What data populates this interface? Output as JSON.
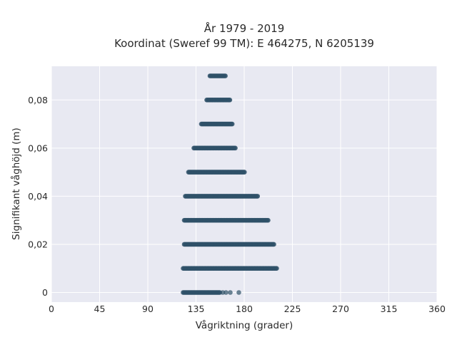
{
  "chart_data": {
    "type": "scatter",
    "title_line1": "År 1979 - 2019",
    "title_line2": "Koordinat (Sweref 99 TM): E 464275, N 6205139",
    "xlabel": "Vågriktning (grader)",
    "ylabel": "Signifikant våghöjd (m)",
    "xlim": [
      0,
      360
    ],
    "ylim": [
      -0.004,
      0.094
    ],
    "xticks": [
      0,
      45,
      90,
      135,
      180,
      225,
      270,
      315,
      360
    ],
    "xtick_labels": [
      "0",
      "45",
      "90",
      "135",
      "180",
      "225",
      "270",
      "315",
      "360"
    ],
    "yticks": [
      0,
      0.02,
      0.04,
      0.06,
      0.08
    ],
    "ytick_labels": [
      "0",
      "0,02",
      "0,04",
      "0,06",
      "0,08"
    ],
    "grid": true,
    "background": "#e8e9f2",
    "marker_color": "#2f5168",
    "bands": [
      {
        "y": 0.0,
        "x_min": 123,
        "x_max": 158,
        "outliers": [
          160,
          163,
          167,
          175
        ]
      },
      {
        "y": 0.01,
        "x_min": 123,
        "x_max": 211,
        "outliers": []
      },
      {
        "y": 0.02,
        "x_min": 124,
        "x_max": 208,
        "outliers": []
      },
      {
        "y": 0.03,
        "x_min": 124,
        "x_max": 203,
        "outliers": []
      },
      {
        "y": 0.04,
        "x_min": 125,
        "x_max": 193,
        "outliers": []
      },
      {
        "y": 0.05,
        "x_min": 128,
        "x_max": 181,
        "outliers": []
      },
      {
        "y": 0.06,
        "x_min": 133,
        "x_max": 172,
        "outliers": []
      },
      {
        "y": 0.07,
        "x_min": 140,
        "x_max": 169,
        "outliers": []
      },
      {
        "y": 0.08,
        "x_min": 145,
        "x_max": 167,
        "outliers": []
      },
      {
        "y": 0.09,
        "x_min": 148,
        "x_max": 163,
        "outliers": []
      }
    ]
  }
}
